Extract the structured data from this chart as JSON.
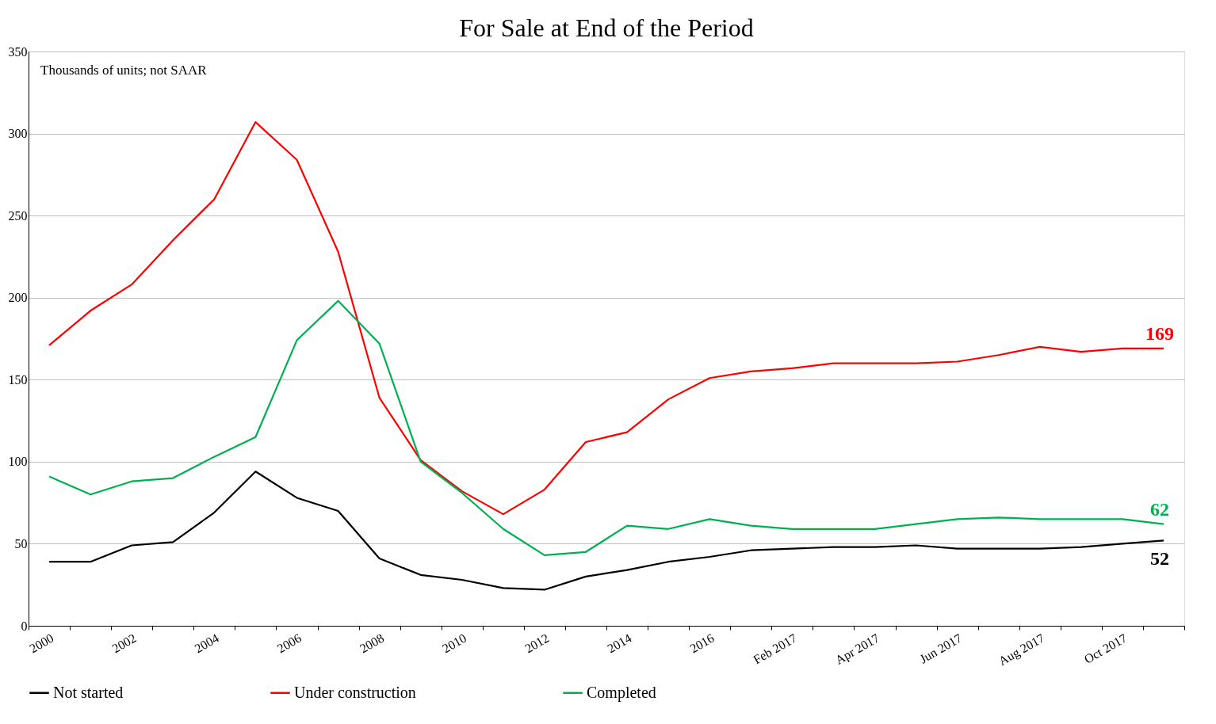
{
  "chart_data": {
    "type": "line",
    "title": "For Sale at End of the Period",
    "categories": [
      "2000",
      null,
      "2002",
      null,
      "2004",
      null,
      "2006",
      null,
      "2008",
      null,
      "2010",
      null,
      "2012",
      null,
      "2014",
      null,
      "2016",
      null,
      "Feb 2017",
      null,
      "Apr 2017",
      null,
      "Jun 2017",
      null,
      "Aug 2017",
      null,
      "Oct 2017",
      null
    ],
    "series": [
      {
        "name": "Not started",
        "color": "#000000",
        "values": [
          39,
          39,
          49,
          51,
          69,
          94,
          78,
          70,
          41,
          31,
          28,
          23,
          22,
          30,
          34,
          39,
          42,
          46,
          47,
          48,
          48,
          49,
          47,
          47,
          47,
          48,
          50,
          52
        ],
        "value_labels": [
          null,
          null,
          null,
          null,
          null,
          null,
          null,
          null,
          null,
          null,
          null,
          null,
          null,
          null,
          null,
          null,
          null,
          null,
          null,
          null,
          null,
          null,
          null,
          null,
          null,
          null,
          null,
          "52"
        ]
      },
      {
        "name": "Under construction",
        "color": "#ff0000",
        "values": [
          171,
          192,
          208,
          235,
          260,
          307,
          284,
          228,
          139,
          101,
          82,
          68,
          83,
          112,
          118,
          138,
          151,
          155,
          157,
          160,
          160,
          160,
          161,
          165,
          170,
          167,
          169,
          169
        ],
        "value_labels": [
          null,
          null,
          null,
          null,
          null,
          null,
          null,
          null,
          null,
          null,
          null,
          null,
          null,
          null,
          null,
          null,
          null,
          null,
          null,
          null,
          null,
          null,
          null,
          null,
          null,
          null,
          null,
          "169"
        ]
      },
      {
        "name": "Completed",
        "color": "#00b050",
        "values": [
          91,
          80,
          88,
          90,
          103,
          115,
          174,
          198,
          172,
          100,
          81,
          59,
          43,
          45,
          61,
          59,
          65,
          61,
          59,
          59,
          59,
          62,
          65,
          66,
          65,
          65,
          65,
          62
        ],
        "value_labels": [
          null,
          null,
          null,
          null,
          null,
          null,
          null,
          null,
          null,
          null,
          null,
          null,
          null,
          null,
          null,
          null,
          null,
          null,
          null,
          null,
          null,
          null,
          null,
          null,
          null,
          null,
          null,
          "62"
        ]
      }
    ],
    "ylim": [
      0,
      350
    ],
    "yticks": [
      0,
      50,
      100,
      150,
      200,
      250,
      300,
      350
    ],
    "grid": "y",
    "legend": "bottom",
    "annotations": [
      "Thousands of units; not SAAR"
    ]
  }
}
